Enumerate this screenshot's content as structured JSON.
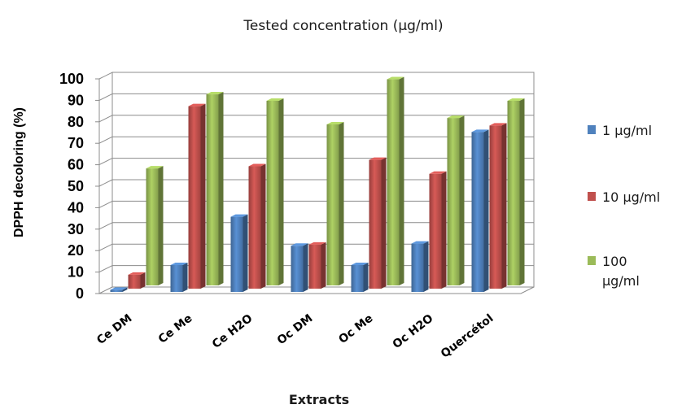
{
  "chart_data": {
    "type": "bar",
    "title": "Tested concentration (µg/ml)",
    "xlabel": "Extracts",
    "ylabel": "DPPH decoloring (%)",
    "ylim": [
      0,
      100
    ],
    "yticks": [
      "0",
      "10",
      "20",
      "30",
      "40",
      "50",
      "60",
      "70",
      "80",
      "90",
      "100"
    ],
    "grid": true,
    "legend_position": "right",
    "categories": [
      "Ce DM",
      "Ce Me",
      "Ce H2O",
      "Oc DM",
      "Oc Me",
      "Oc H2O",
      "Quercétol"
    ],
    "series": [
      {
        "name": "1 µg/ml",
        "color": "#4f81bd",
        "values": [
          1,
          12.5,
          35,
          21.5,
          12.5,
          22.5,
          74.5
        ]
      },
      {
        "name": "10 µg/ml",
        "color": "#c0504d",
        "values": [
          6.5,
          85,
          57,
          20.5,
          60,
          53.5,
          76
        ]
      },
      {
        "name": "100 µg/ml",
        "color": "#9bbb59",
        "values": [
          54.5,
          89,
          86,
          75,
          96,
          78,
          86
        ]
      }
    ],
    "legend_lines": [
      [
        "1 µg/ml"
      ],
      [
        "10 µg/ml"
      ],
      [
        "100",
        "µg/ml"
      ]
    ]
  }
}
